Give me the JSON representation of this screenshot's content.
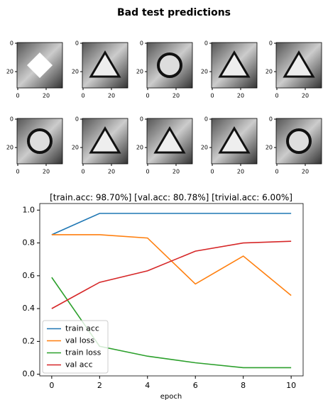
{
  "chart_data": [
    {
      "type": "image",
      "title": "Bad test predictions",
      "xlim": [
        -0.5,
        31.5
      ],
      "ylim": [
        31.5,
        -0.5
      ],
      "xticks": [
        0,
        20
      ],
      "yticks": [
        0,
        20
      ]
    },
    {
      "type": "line",
      "title": "[train.acc: 98.70%] [val.acc: 80.78%] [trivial.acc: 6.00%]",
      "x_label": "epoch",
      "x": [
        0,
        2,
        4,
        6,
        8,
        10
      ],
      "series": [
        {
          "name": "train acc",
          "color": "#1f77b4",
          "values": [
            0.85,
            0.98,
            0.98,
            0.98,
            0.98,
            0.98
          ]
        },
        {
          "name": "val loss",
          "color": "#ff7f0e",
          "values": [
            0.85,
            0.85,
            0.83,
            0.55,
            0.72,
            0.48
          ]
        },
        {
          "name": "train loss",
          "color": "#2ca02c",
          "values": [
            0.59,
            0.17,
            0.11,
            0.07,
            0.04,
            0.04
          ]
        },
        {
          "name": "val acc",
          "color": "#d62728",
          "values": [
            0.4,
            0.56,
            0.63,
            0.75,
            0.8,
            0.81
          ]
        }
      ],
      "xlim": [
        -0.5,
        10.5
      ],
      "ylim": [
        -0.01,
        1.04
      ],
      "xticks": [
        0,
        2,
        4,
        6,
        8,
        10
      ],
      "yticks": [
        {
          "value": 0,
          "label": "0.0"
        },
        {
          "value": 0.2,
          "label": "0.2"
        },
        {
          "value": 0.4,
          "label": "0.4"
        },
        {
          "value": 0.6,
          "label": "0.6"
        },
        {
          "value": 0.8,
          "label": "0.8"
        },
        {
          "value": 1.0,
          "label": "1.0"
        }
      ],
      "legend": "lower left"
    }
  ]
}
